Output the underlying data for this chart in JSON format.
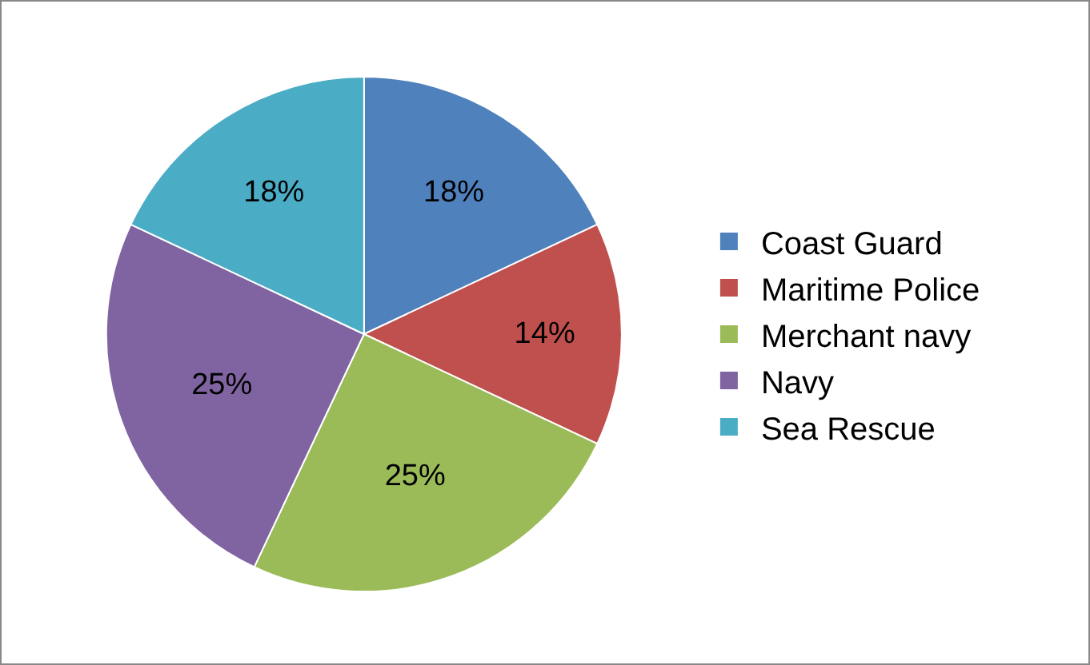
{
  "chart_data": {
    "type": "pie",
    "categories": [
      "Coast Guard",
      "Maritime Police",
      "Merchant navy",
      "Navy",
      "Sea Rescue"
    ],
    "values": [
      18,
      14,
      25,
      25,
      18
    ],
    "value_labels": [
      "18%",
      "14%",
      "25%",
      "25%",
      "18%"
    ],
    "colors": [
      "#4f81bd",
      "#c0504d",
      "#9bbb59",
      "#8064a2",
      "#4bacc6"
    ],
    "legend": "right"
  }
}
